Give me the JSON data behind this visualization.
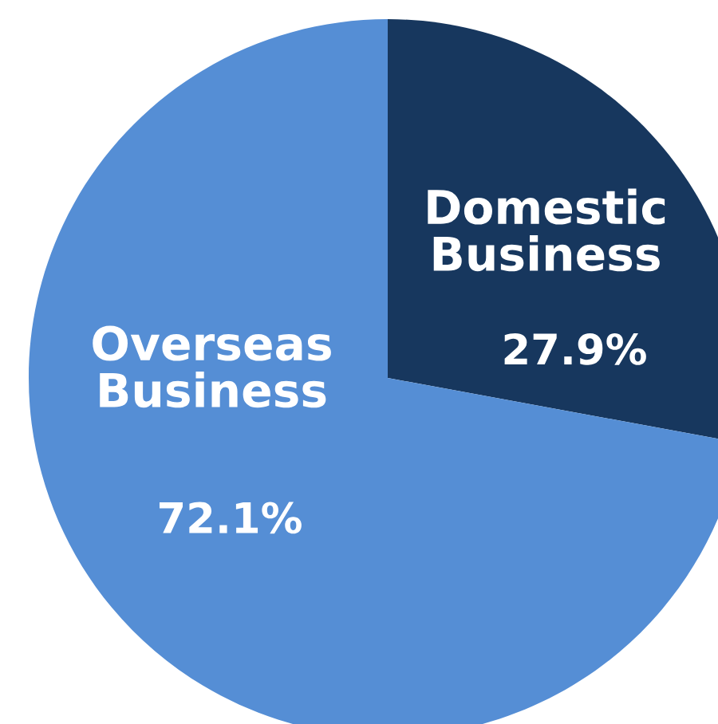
{
  "chart_data": {
    "type": "pie",
    "categories": [
      "Domestic Business",
      "Overseas Business"
    ],
    "values": [
      27.9,
      72.1
    ],
    "value_labels": [
      "27.9%",
      "72.1%"
    ],
    "colors": [
      "#17375e",
      "#558ed5"
    ]
  }
}
